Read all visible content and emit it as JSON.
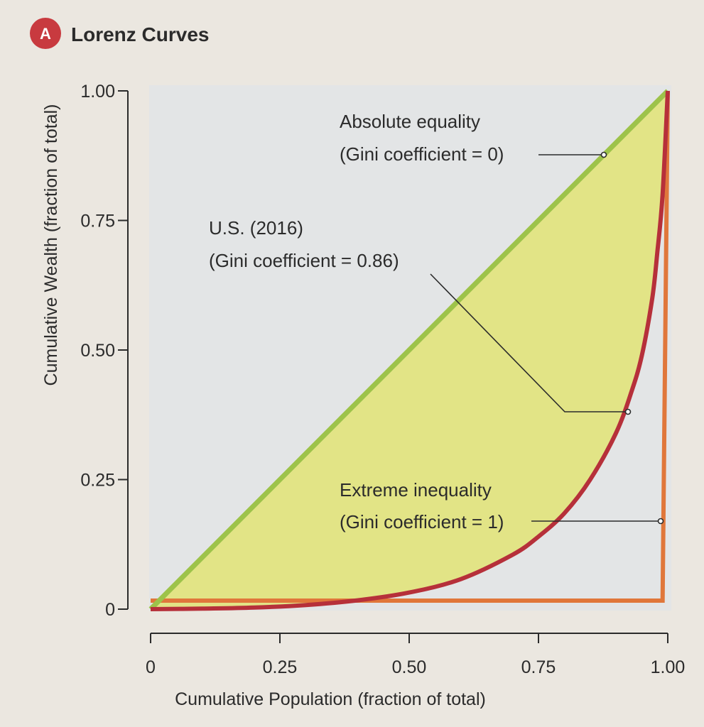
{
  "panel": {
    "badge": "A",
    "title": "Lorenz Curves"
  },
  "colors": {
    "paper": "#ebe7e0",
    "plot_bg": "#e3e5e6",
    "fill": "#e2e486",
    "equality_line": "#9dc34a",
    "us_curve": "#b6303a",
    "extreme_line": "#e0773b",
    "badge": "#c83a3f",
    "ink": "#2b2b2b"
  },
  "chart_data": {
    "type": "line",
    "title": "Lorenz Curves",
    "xlabel": "Cumulative Population (fraction of total)",
    "ylabel": "Cumulative Wealth (fraction of total)",
    "xlim": [
      0,
      1
    ],
    "ylim": [
      0,
      1
    ],
    "x_ticks": [
      "0",
      "0.25",
      "0.50",
      "0.75",
      "1.00"
    ],
    "y_ticks": [
      "0",
      "0.25",
      "0.50",
      "0.75",
      "1.00"
    ],
    "grid": false,
    "series": [
      {
        "name": "Absolute equality",
        "x": [
          0,
          1
        ],
        "y": [
          0,
          1
        ]
      },
      {
        "name": "U.S. (2016)",
        "x": [
          0,
          0.1,
          0.2,
          0.3,
          0.4,
          0.5,
          0.6,
          0.7,
          0.75,
          0.8,
          0.85,
          0.9,
          0.93,
          0.95,
          0.97,
          0.98,
          0.99,
          1.0
        ],
        "y": [
          0,
          0.001,
          0.003,
          0.008,
          0.017,
          0.032,
          0.058,
          0.105,
          0.14,
          0.185,
          0.25,
          0.34,
          0.42,
          0.49,
          0.6,
          0.69,
          0.8,
          1.0
        ]
      },
      {
        "name": "Extreme inequality",
        "x": [
          0,
          0.99,
          1.0
        ],
        "y": [
          0,
          0,
          1
        ]
      }
    ],
    "annotations": [
      {
        "line1": "Absolute equality",
        "line2": "(Gini coefficient = 0)"
      },
      {
        "line1": "U.S. (2016)",
        "line2": "(Gini coefficient = 0.86)"
      },
      {
        "line1": "Extreme inequality",
        "line2": "(Gini coefficient = 1)"
      }
    ]
  }
}
